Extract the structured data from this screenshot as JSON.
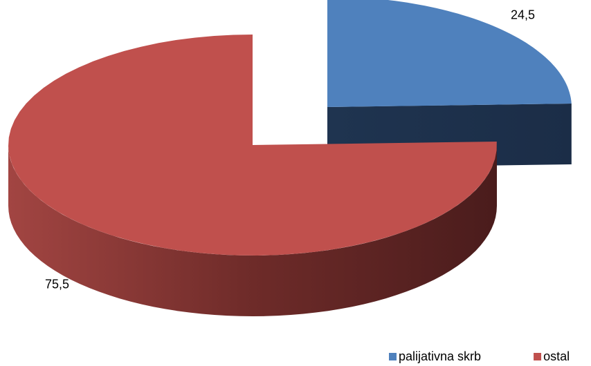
{
  "chart_data": {
    "type": "pie3d",
    "categories": [
      "palijativna skrb",
      "ostal"
    ],
    "values": [
      24.5,
      75.5
    ],
    "value_labels": [
      "24,5",
      "75,5"
    ],
    "colors": [
      "#4f81bd",
      "#c0504d"
    ],
    "explode": [
      true,
      false
    ],
    "legend": "bottom-right"
  }
}
